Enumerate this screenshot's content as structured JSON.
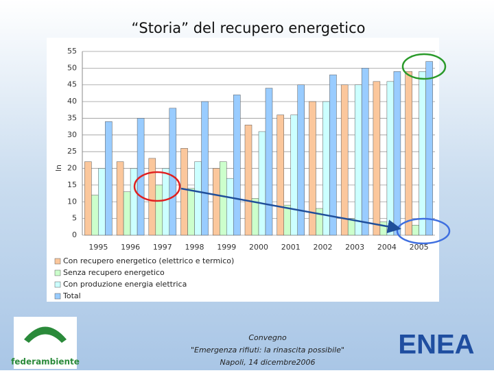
{
  "title": "“Storia” del recupero energetico",
  "chart_data": {
    "type": "bar",
    "y_label": "ln",
    "categories": [
      "1995",
      "1996",
      "1997",
      "1998",
      "1999",
      "2000",
      "2001",
      "2002",
      "2003",
      "2004",
      "2005"
    ],
    "series": [
      {
        "name": "Con recupero energetico (elettrico e termico)",
        "color": "#fbc79c",
        "values": [
          22,
          22,
          23,
          26,
          20,
          33,
          36,
          40,
          45,
          46,
          49
        ]
      },
      {
        "name": "Senza recupero energetico",
        "color": "#ccffcc",
        "values": [
          12,
          13,
          15,
          14,
          22,
          11,
          9,
          8,
          5,
          4,
          3
        ]
      },
      {
        "name": "Con produzione energia elettrica",
        "color": "#ccffff",
        "values": [
          20,
          20,
          20,
          22,
          17,
          31,
          36,
          40,
          45,
          46,
          49
        ]
      },
      {
        "name": "Total",
        "color": "#99ccff",
        "values": [
          34,
          35,
          38,
          40,
          42,
          44,
          45,
          48,
          50,
          49,
          52
        ]
      }
    ],
    "ylim": [
      0,
      55
    ],
    "yticks": [
      0,
      5,
      10,
      15,
      20,
      25,
      30,
      35,
      40,
      45,
      50,
      55
    ],
    "grid": true
  },
  "footer": {
    "lines": [
      "Convegno",
      "\"Emergenza rifiuti: la rinascita possibile\"",
      "Napoli, 14 dicembre2006"
    ]
  },
  "logos": {
    "left": "federambiente",
    "right": "ENEA"
  }
}
